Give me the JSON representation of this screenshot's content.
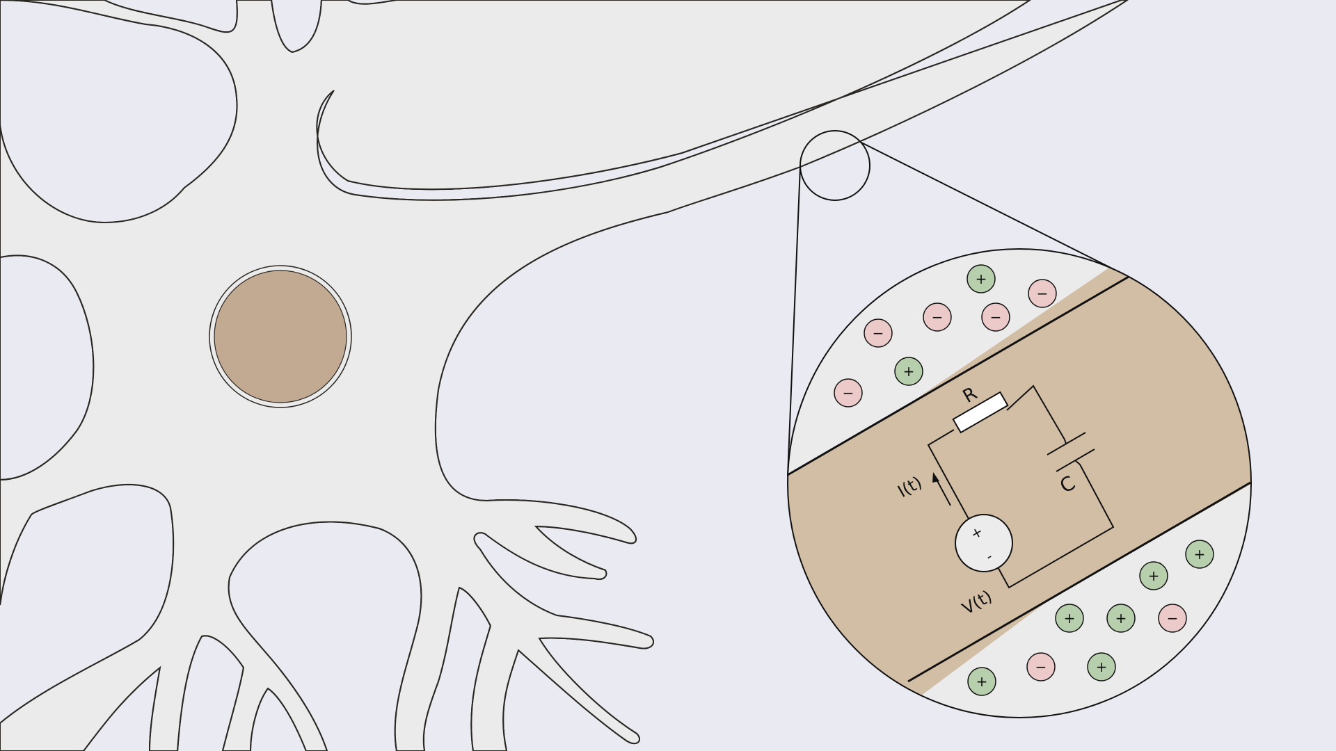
{
  "colors": {
    "background": "#e9eaf2",
    "cell_fill": "#ebebeb",
    "membrane": "#d9cab8",
    "outline": "#2a2622",
    "nucleus": "#c2aa92",
    "axon_interior": "#d2bda5",
    "positive_ion": "#b7cfac",
    "negative_ion": "#eccaca",
    "battery_fill": "#ececec"
  },
  "circuit": {
    "resistor_label": "R",
    "capacitor_label": "C",
    "current_label": "I(t)",
    "voltage_label": "V(t)",
    "battery_plus": "+",
    "battery_minus": "-"
  },
  "ions": {
    "positive_sign": "+",
    "negative_sign": "−"
  }
}
